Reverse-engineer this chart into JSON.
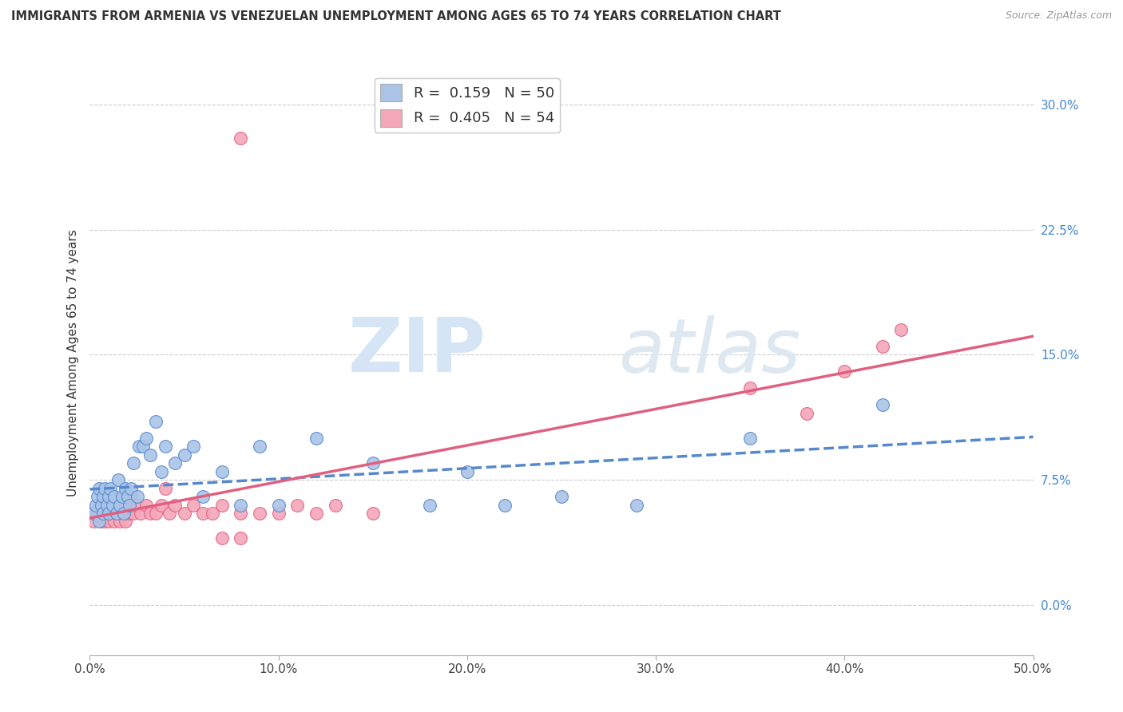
{
  "title": "IMMIGRANTS FROM ARMENIA VS VENEZUELAN UNEMPLOYMENT AMONG AGES 65 TO 74 YEARS CORRELATION CHART",
  "source": "Source: ZipAtlas.com",
  "ylabel": "Unemployment Among Ages 65 to 74 years",
  "xlim": [
    0,
    0.5
  ],
  "ylim": [
    -0.03,
    0.32
  ],
  "xticks": [
    0.0,
    0.1,
    0.2,
    0.3,
    0.4,
    0.5
  ],
  "xticklabels": [
    "0.0%",
    "10.0%",
    "20.0%",
    "30.0%",
    "40.0%",
    "50.0%"
  ],
  "yticks_right": [
    0.0,
    0.075,
    0.15,
    0.225,
    0.3
  ],
  "yticklabels_right": [
    "0.0%",
    "7.5%",
    "15.0%",
    "22.5%",
    "30.0%"
  ],
  "blue_color": "#aac4e8",
  "pink_color": "#f4a7b9",
  "blue_line_color": "#5588cc",
  "pink_line_color": "#e06080",
  "background_color": "#ffffff",
  "grid_color": "#cccccc",
  "blue_scatter_x": [
    0.002,
    0.003,
    0.004,
    0.005,
    0.005,
    0.006,
    0.007,
    0.007,
    0.008,
    0.009,
    0.01,
    0.01,
    0.011,
    0.012,
    0.013,
    0.014,
    0.015,
    0.016,
    0.017,
    0.018,
    0.019,
    0.02,
    0.021,
    0.022,
    0.023,
    0.025,
    0.026,
    0.028,
    0.03,
    0.032,
    0.035,
    0.038,
    0.04,
    0.045,
    0.05,
    0.055,
    0.06,
    0.07,
    0.08,
    0.09,
    0.1,
    0.12,
    0.15,
    0.18,
    0.2,
    0.22,
    0.25,
    0.29,
    0.35,
    0.42
  ],
  "blue_scatter_y": [
    0.055,
    0.06,
    0.065,
    0.05,
    0.07,
    0.06,
    0.065,
    0.055,
    0.07,
    0.06,
    0.065,
    0.055,
    0.07,
    0.06,
    0.065,
    0.055,
    0.075,
    0.06,
    0.065,
    0.055,
    0.07,
    0.065,
    0.06,
    0.07,
    0.085,
    0.065,
    0.095,
    0.095,
    0.1,
    0.09,
    0.11,
    0.08,
    0.095,
    0.085,
    0.09,
    0.095,
    0.065,
    0.08,
    0.06,
    0.095,
    0.06,
    0.1,
    0.085,
    0.06,
    0.08,
    0.06,
    0.065,
    0.06,
    0.1,
    0.12
  ],
  "pink_scatter_x": [
    0.002,
    0.003,
    0.004,
    0.005,
    0.006,
    0.006,
    0.007,
    0.008,
    0.008,
    0.009,
    0.01,
    0.01,
    0.011,
    0.012,
    0.013,
    0.014,
    0.015,
    0.016,
    0.017,
    0.018,
    0.019,
    0.02,
    0.021,
    0.022,
    0.023,
    0.025,
    0.027,
    0.03,
    0.032,
    0.035,
    0.038,
    0.04,
    0.042,
    0.045,
    0.05,
    0.055,
    0.06,
    0.065,
    0.07,
    0.08,
    0.09,
    0.1,
    0.11,
    0.12,
    0.13,
    0.15,
    0.08,
    0.07,
    0.35,
    0.38,
    0.4,
    0.42,
    0.43,
    0.08
  ],
  "pink_scatter_y": [
    0.05,
    0.055,
    0.055,
    0.06,
    0.05,
    0.06,
    0.055,
    0.06,
    0.05,
    0.055,
    0.06,
    0.05,
    0.055,
    0.06,
    0.05,
    0.055,
    0.06,
    0.05,
    0.055,
    0.06,
    0.05,
    0.06,
    0.055,
    0.065,
    0.055,
    0.06,
    0.055,
    0.06,
    0.055,
    0.055,
    0.06,
    0.07,
    0.055,
    0.06,
    0.055,
    0.06,
    0.055,
    0.055,
    0.06,
    0.055,
    0.055,
    0.055,
    0.06,
    0.055,
    0.06,
    0.055,
    0.04,
    0.04,
    0.13,
    0.115,
    0.14,
    0.155,
    0.165,
    0.28
  ]
}
